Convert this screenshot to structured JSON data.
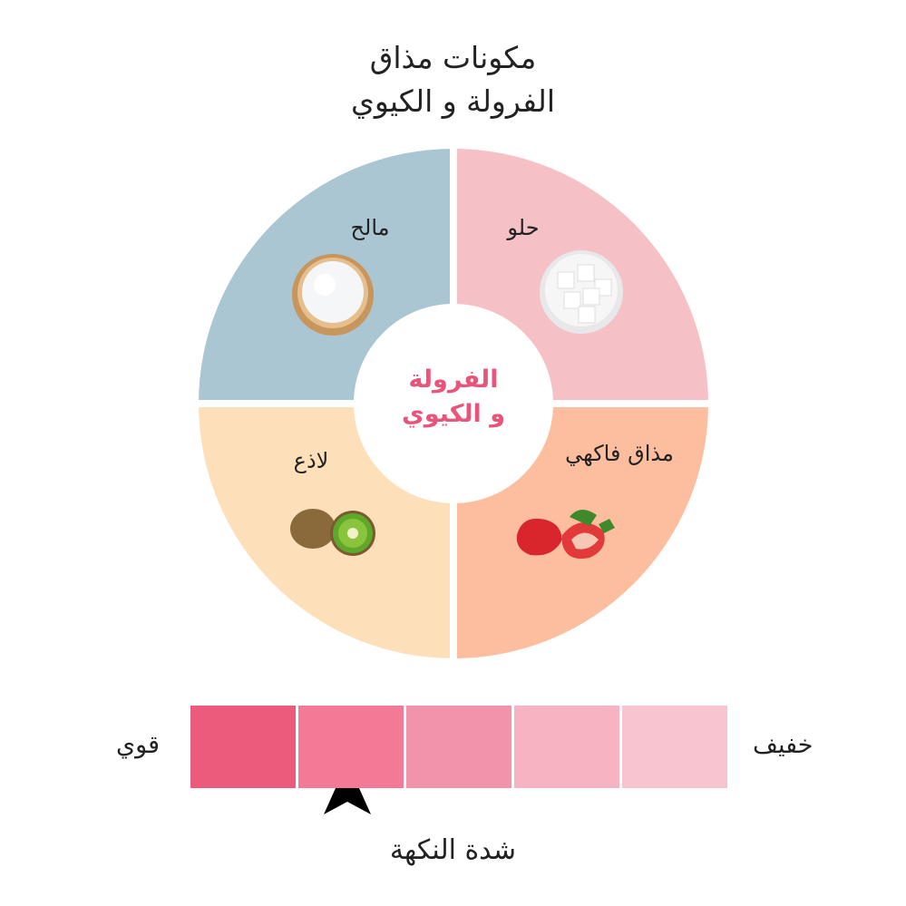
{
  "title": {
    "line1": "مكونات مذاق",
    "line2": "الفرولة و الكيوي"
  },
  "wheel": {
    "center": {
      "line1": "الفرولة",
      "line2": "و الكيوي",
      "color": "#e8557a"
    },
    "quadrants": [
      {
        "label": "مالح",
        "icon": "salt-bowl-icon",
        "color": "#a9c6d2"
      },
      {
        "label": "حلو",
        "icon": "sugar-cubes-icon",
        "color": "#f5c1c7"
      },
      {
        "label": "لاذع",
        "icon": "kiwi-icon",
        "color": "#fde0b9"
      },
      {
        "label": "مذاق فاكهي",
        "icon": "strawberry-icon",
        "color": "#fdbea0"
      }
    ]
  },
  "scale": {
    "title": "شدة النكهة",
    "left_label": "قوي",
    "right_label": "خفيف",
    "colors": [
      "#ec5a7c",
      "#f27a96",
      "#f393a9",
      "#f7b3c1",
      "#f8c4cf"
    ],
    "selected_level_from_strong": 2,
    "pointer_icon": "triangle-pointer-icon"
  }
}
